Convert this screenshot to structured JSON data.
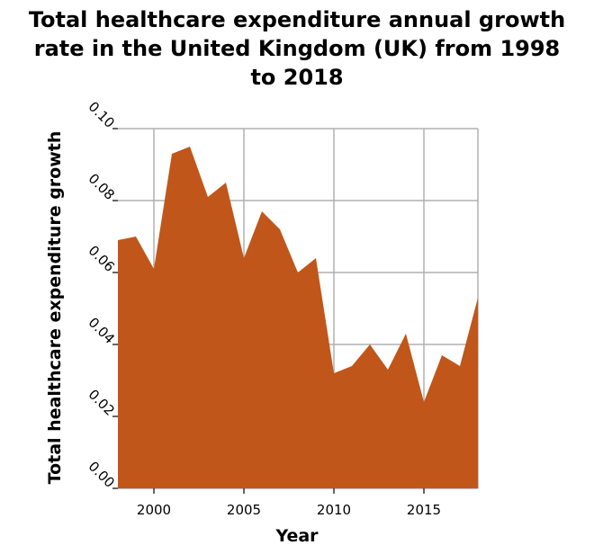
{
  "chart_data": {
    "type": "area",
    "title": "Total healthcare expenditure annual growth rate in the United Kingdom (UK) from 1998 to 2018",
    "title_lines": [
      "Total healthcare expenditure annual growth",
      "rate in the United Kingdom (UK) from 1998",
      "to 2018"
    ],
    "xlabel": "Year",
    "ylabel": "Total healthcare expenditure growth",
    "x": [
      1998,
      1999,
      2000,
      2001,
      2002,
      2003,
      2004,
      2005,
      2006,
      2007,
      2008,
      2009,
      2010,
      2011,
      2012,
      2013,
      2014,
      2015,
      2016,
      2017,
      2018
    ],
    "values": [
      0.069,
      0.07,
      0.061,
      0.093,
      0.095,
      0.081,
      0.085,
      0.064,
      0.077,
      0.072,
      0.06,
      0.064,
      0.032,
      0.034,
      0.04,
      0.033,
      0.043,
      0.024,
      0.037,
      0.034,
      0.053
    ],
    "xlim": [
      1998,
      2018
    ],
    "ylim": [
      0,
      0.1
    ],
    "x_ticks": [
      2000,
      2005,
      2010,
      2015
    ],
    "x_tick_labels": [
      "2000",
      "2005",
      "2010",
      "2015"
    ],
    "y_ticks": [
      0,
      0.02,
      0.04,
      0.06,
      0.08,
      0.1
    ],
    "y_tick_labels": [
      "0.00",
      "0.02",
      "0.04",
      "0.06",
      "0.08",
      "0.10"
    ],
    "grid": true,
    "colors": {
      "fill": "#c1561a",
      "grid": "#b0b0b0"
    }
  }
}
